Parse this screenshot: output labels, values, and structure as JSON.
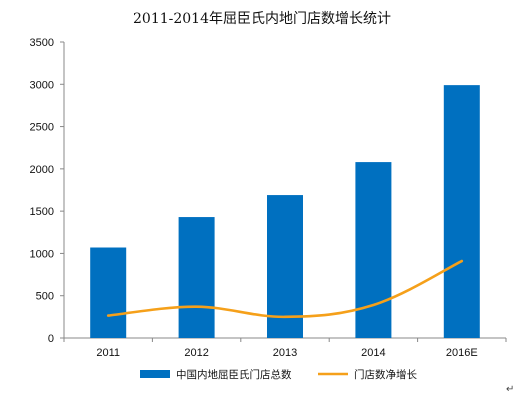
{
  "chart_data": {
    "type": "bar",
    "title": "2011-2014年屈臣氏内地门店数增长统计",
    "categories": [
      "2011",
      "2012",
      "2013",
      "2014",
      "2016E"
    ],
    "ylim": [
      0,
      3500
    ],
    "yticks": [
      0,
      500,
      1000,
      1500,
      2000,
      2500,
      3000,
      3500
    ],
    "grid": false,
    "legend_position": "bottom",
    "series": [
      {
        "name": "中国内地屈臣氏门店总数",
        "type": "bar",
        "color": "#0070C0",
        "values": [
          1070,
          1430,
          1690,
          2080,
          2990
        ]
      },
      {
        "name": "门店数净增长",
        "type": "line",
        "color": "#F5A01A",
        "values": [
          265,
          370,
          250,
          390,
          910
        ]
      }
    ]
  },
  "footer_mark": "↵"
}
